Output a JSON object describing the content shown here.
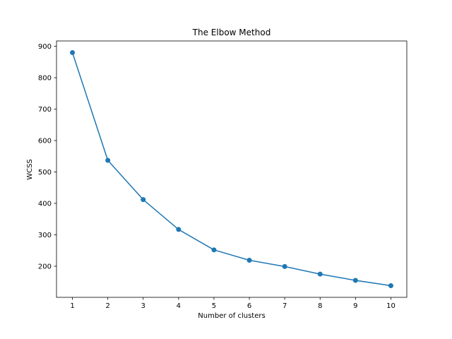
{
  "chart_data": {
    "type": "line",
    "title": "The Elbow Method",
    "xlabel": "Number of clusters",
    "ylabel": "WCSS",
    "x": [
      1,
      2,
      3,
      4,
      5,
      6,
      7,
      8,
      9,
      10
    ],
    "series": [
      {
        "values": [
          880,
          537,
          412,
          317,
          252,
          219,
          199,
          175,
          155,
          138
        ],
        "color": "#1f77b4",
        "marker": "circle"
      }
    ],
    "xlim": [
      0.55,
      10.45
    ],
    "ylim": [
      101,
      917
    ],
    "xticks": [
      1,
      2,
      3,
      4,
      5,
      6,
      7,
      8,
      9,
      10
    ],
    "yticks": [
      200,
      300,
      400,
      500,
      600,
      700,
      800,
      900
    ],
    "grid": false,
    "legend": false
  }
}
